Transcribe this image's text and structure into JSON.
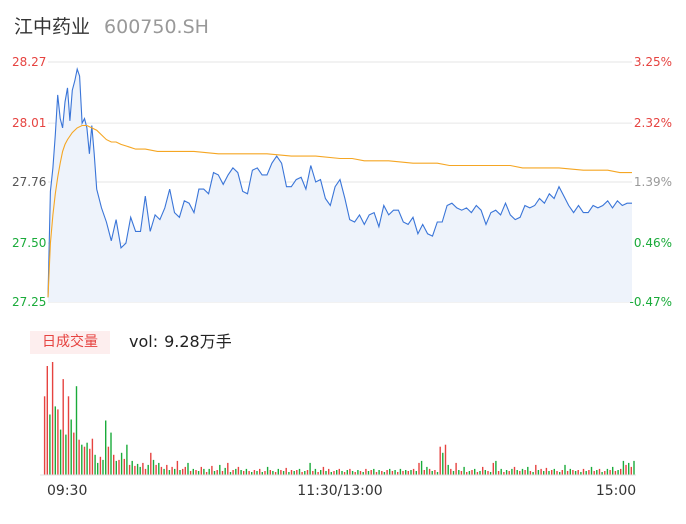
{
  "header": {
    "stock_name": "江中药业",
    "stock_code": "600750.SH"
  },
  "volume_panel": {
    "badge": "日成交量",
    "vol_label": "vol:",
    "vol_value": "9.28万手"
  },
  "colors": {
    "price": "#3a75d8",
    "avg": "#f5a623",
    "up": "#e64340",
    "down": "#1aab3a",
    "grid": "#e6e6e6"
  },
  "chart_data": [
    {
      "type": "line",
      "title": "",
      "x_ticks": [
        "09:30",
        "11:30/13:00",
        "15:00"
      ],
      "ylim": [
        27.25,
        28.27
      ],
      "y_ticks_left": [
        {
          "label": "28.27",
          "value": 28.27,
          "color": "#e64340"
        },
        {
          "label": "28.01",
          "value": 28.01,
          "color": "#e64340"
        },
        {
          "label": "27.76",
          "value": 27.76,
          "color": "#555555"
        },
        {
          "label": "27.50",
          "value": 27.5,
          "color": "#1aab3a"
        },
        {
          "label": "27.25",
          "value": 27.25,
          "color": "#1aab3a"
        }
      ],
      "y_ticks_right": [
        {
          "label": "3.25%",
          "color": "#e64340"
        },
        {
          "label": "2.32%",
          "color": "#e64340"
        },
        {
          "label": "1.39%",
          "color": "#999999"
        },
        {
          "label": "0.46%",
          "color": "#1aab3a"
        },
        {
          "label": "-0.47%",
          "color": "#1aab3a"
        }
      ],
      "series": [
        {
          "role": "price",
          "x": [
            0,
            1,
            2,
            3,
            4,
            5,
            6,
            7,
            8,
            9,
            10,
            11,
            12,
            13,
            14,
            15,
            16,
            17,
            18,
            19,
            20,
            22,
            24,
            26,
            28,
            30,
            32,
            34,
            36,
            38,
            40,
            42,
            44,
            46,
            48,
            50,
            52,
            54,
            56,
            58,
            60,
            62,
            64,
            66,
            68,
            70,
            72,
            74,
            76,
            78,
            80,
            82,
            84,
            86,
            88,
            90,
            92,
            94,
            96,
            98,
            100,
            102,
            104,
            106,
            108,
            110,
            112,
            114,
            116,
            118,
            120,
            122,
            124,
            126,
            128,
            130,
            132,
            134,
            136,
            138,
            140,
            142,
            144,
            146,
            148,
            150,
            152,
            154,
            156,
            158,
            160,
            162,
            164,
            166,
            168,
            170,
            172,
            174,
            176,
            178,
            180,
            182,
            184,
            186,
            188,
            190,
            192,
            194,
            196,
            198,
            200,
            202,
            204,
            206,
            208,
            210,
            212,
            214,
            216,
            218,
            220,
            222,
            224,
            226,
            228,
            230,
            232,
            234,
            236,
            238,
            240
          ],
          "values": [
            27.27,
            27.72,
            27.82,
            27.96,
            28.13,
            28.03,
            27.99,
            28.1,
            28.16,
            28.02,
            28.15,
            28.19,
            28.24,
            28.21,
            28.01,
            28.03,
            27.99,
            27.88,
            28.0,
            27.88,
            27.73,
            27.65,
            27.59,
            27.51,
            27.6,
            27.48,
            27.5,
            27.61,
            27.55,
            27.55,
            27.7,
            27.55,
            27.62,
            27.6,
            27.65,
            27.73,
            27.63,
            27.61,
            27.68,
            27.67,
            27.63,
            27.73,
            27.73,
            27.71,
            27.8,
            27.79,
            27.75,
            27.79,
            27.82,
            27.8,
            27.72,
            27.71,
            27.81,
            27.82,
            27.79,
            27.79,
            27.84,
            27.87,
            27.84,
            27.74,
            27.74,
            27.77,
            27.78,
            27.73,
            27.83,
            27.76,
            27.77,
            27.69,
            27.66,
            27.74,
            27.77,
            27.69,
            27.6,
            27.59,
            27.62,
            27.58,
            27.62,
            27.63,
            27.57,
            27.66,
            27.62,
            27.64,
            27.64,
            27.59,
            27.58,
            27.61,
            27.54,
            27.58,
            27.54,
            27.53,
            27.59,
            27.59,
            27.66,
            27.67,
            27.65,
            27.64,
            27.65,
            27.63,
            27.66,
            27.64,
            27.58,
            27.63,
            27.64,
            27.62,
            27.67,
            27.62,
            27.6,
            27.61,
            27.66,
            27.65,
            27.66,
            27.69,
            27.67,
            27.71,
            27.69,
            27.74,
            27.7,
            27.66,
            27.63,
            27.66,
            27.63,
            27.63,
            27.66,
            27.65,
            27.66,
            27.68,
            27.65,
            27.68,
            27.66,
            27.67,
            27.67
          ]
        },
        {
          "role": "avg",
          "x": [
            0,
            1,
            2,
            3,
            4,
            5,
            6,
            7,
            8,
            10,
            12,
            14,
            16,
            18,
            20,
            22,
            24,
            26,
            28,
            30,
            33,
            36,
            40,
            45,
            50,
            55,
            60,
            70,
            80,
            90,
            100,
            110,
            120,
            125,
            130,
            140,
            150,
            160,
            165,
            170,
            180,
            190,
            195,
            200,
            210,
            220,
            230,
            235,
            240
          ],
          "values": [
            27.27,
            27.5,
            27.62,
            27.71,
            27.78,
            27.84,
            27.89,
            27.92,
            27.94,
            27.97,
            27.99,
            28.0,
            28.0,
            27.99,
            27.98,
            27.96,
            27.94,
            27.93,
            27.93,
            27.92,
            27.91,
            27.9,
            27.9,
            27.89,
            27.89,
            27.89,
            27.89,
            27.88,
            27.88,
            27.88,
            27.87,
            27.87,
            27.86,
            27.86,
            27.85,
            27.85,
            27.84,
            27.84,
            27.83,
            27.83,
            27.83,
            27.83,
            27.82,
            27.82,
            27.82,
            27.81,
            27.81,
            27.8,
            27.8
          ]
        }
      ]
    },
    {
      "type": "bar",
      "title": "",
      "ylim": [
        0,
        110
      ],
      "volumes": [
        0,
        78,
        108,
        60,
        112,
        68,
        65,
        45,
        95,
        40,
        78,
        55,
        42,
        88,
        35,
        30,
        28,
        32,
        26,
        36,
        20,
        12,
        18,
        15,
        54,
        28,
        42,
        20,
        14,
        15,
        22,
        16,
        30,
        10,
        14,
        9,
        11,
        8,
        12,
        6,
        10,
        22,
        15,
        10,
        12,
        8,
        6,
        10,
        5,
        8,
        6,
        14,
        5,
        6,
        8,
        12,
        4,
        6,
        5,
        4,
        8,
        6,
        3,
        6,
        9,
        4,
        5,
        10,
        4,
        7,
        12,
        3,
        5,
        6,
        8,
        5,
        4,
        6,
        4,
        3,
        5,
        4,
        6,
        3,
        4,
        8,
        5,
        4,
        3,
        6,
        5,
        4,
        7,
        3,
        5,
        4,
        5,
        6,
        3,
        4,
        5,
        12,
        4,
        6,
        3,
        5,
        8,
        4,
        6,
        3,
        4,
        5,
        6,
        4,
        3,
        5,
        6,
        4,
        3,
        5,
        4,
        3,
        6,
        4,
        5,
        6,
        3,
        5,
        4,
        3,
        5,
        6,
        4,
        5,
        3,
        6,
        4,
        5,
        4,
        5,
        6,
        4,
        12,
        14,
        5,
        8,
        6,
        4,
        5,
        3,
        28,
        22,
        30,
        10,
        6,
        4,
        12,
        5,
        4,
        8,
        3,
        4,
        5,
        6,
        3,
        4,
        8,
        5,
        4,
        3,
        12,
        14,
        4,
        6,
        3,
        5,
        4,
        6,
        8,
        5,
        4,
        6,
        5,
        8,
        4,
        3,
        10,
        5,
        6,
        4,
        7,
        4,
        5,
        6,
        4,
        3,
        5,
        10,
        4,
        6,
        5,
        4,
        5,
        3,
        6,
        4,
        5,
        8,
        4,
        5,
        6,
        3,
        4,
        6,
        5,
        8,
        4,
        5,
        6,
        14,
        10,
        12,
        8,
        14
      ],
      "directions": [
        "up",
        "up",
        "up",
        "down",
        "up",
        "down",
        "up",
        "down",
        "up",
        "down",
        "up",
        "down",
        "up",
        "down",
        "up",
        "down",
        "up",
        "down",
        "up",
        "up",
        "down",
        "down",
        "up",
        "down",
        "down",
        "up",
        "down",
        "up",
        "down",
        "up",
        "down",
        "up",
        "down",
        "up",
        "down",
        "up",
        "down",
        "down",
        "up",
        "up",
        "down",
        "up",
        "down",
        "up",
        "down",
        "up",
        "down",
        "up",
        "down",
        "up",
        "down",
        "up",
        "down",
        "up",
        "up",
        "down",
        "up",
        "down",
        "up",
        "down",
        "up",
        "down",
        "up",
        "down",
        "up",
        "down",
        "up",
        "down",
        "up",
        "down",
        "up",
        "down",
        "up",
        "down",
        "up",
        "down",
        "up",
        "down",
        "up",
        "down",
        "up",
        "down",
        "up",
        "down",
        "up",
        "down",
        "up",
        "down",
        "up",
        "down",
        "up",
        "down",
        "up",
        "down",
        "up",
        "down",
        "up",
        "down",
        "up",
        "down",
        "up",
        "down",
        "up",
        "down",
        "up",
        "down",
        "up",
        "down",
        "up",
        "down",
        "up",
        "down",
        "up",
        "down",
        "up",
        "down",
        "up",
        "down",
        "up",
        "down",
        "up",
        "down",
        "up",
        "down",
        "up",
        "down",
        "up",
        "down",
        "up",
        "down",
        "up",
        "down",
        "up",
        "down",
        "up",
        "down",
        "up",
        "down",
        "up",
        "down",
        "up",
        "down",
        "up",
        "down",
        "up",
        "down",
        "up",
        "down",
        "up",
        "down",
        "up",
        "down",
        "up",
        "down",
        "up",
        "down",
        "up",
        "down",
        "up",
        "down",
        "up",
        "down",
        "up",
        "down",
        "up",
        "down",
        "up",
        "down",
        "up",
        "down",
        "up",
        "down",
        "up",
        "down",
        "up",
        "down",
        "up",
        "down",
        "up",
        "down",
        "up",
        "down",
        "up",
        "down",
        "up",
        "down",
        "up",
        "down",
        "up",
        "down",
        "up",
        "down",
        "up",
        "down",
        "up",
        "down",
        "up",
        "down",
        "up",
        "down",
        "up",
        "down",
        "up",
        "down",
        "up",
        "down",
        "up",
        "down",
        "up",
        "down",
        "up",
        "down",
        "up",
        "down",
        "up",
        "down",
        "up",
        "down",
        "up",
        "down",
        "up",
        "down",
        "up",
        "down",
        "up",
        "down",
        "up",
        "down",
        "up",
        "down",
        "up",
        "down",
        "up",
        "down",
        "up",
        "down"
      ]
    }
  ]
}
